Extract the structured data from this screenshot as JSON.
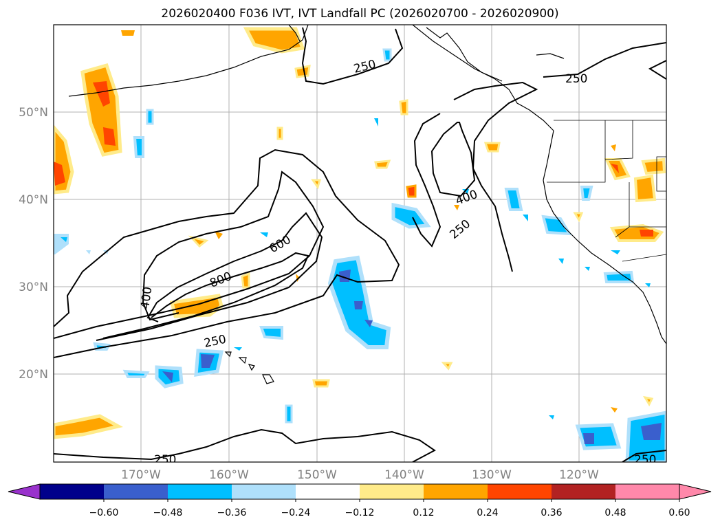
{
  "title": "2026020400 F036 IVT, IVT Landfall PC (2026020700 - 2026020900)",
  "lat_labels": [
    "50°N",
    "40°N",
    "30°N",
    "20°N"
  ],
  "lon_labels": [
    "170°W",
    "160°W",
    "150°W",
    "140°W",
    "130°W",
    "120°W"
  ],
  "ivt_contour_levels": [
    "250",
    "400",
    "600",
    "800"
  ],
  "colorbar": {
    "tick_labels": [
      "−0.60",
      "−0.48",
      "−0.36",
      "−0.24",
      "−0.12",
      "0.12",
      "0.24",
      "0.36",
      "0.48",
      "0.60"
    ],
    "colors": [
      "#9932cc",
      "#00008b",
      "#3a5fcd",
      "#00bfff",
      "#afe0fb",
      "#ffffff",
      "#ffeb8a",
      "#ffa500",
      "#ff4500",
      "#b22222",
      "#ff88aa",
      "#ff88aa"
    ],
    "extend": "both"
  }
}
